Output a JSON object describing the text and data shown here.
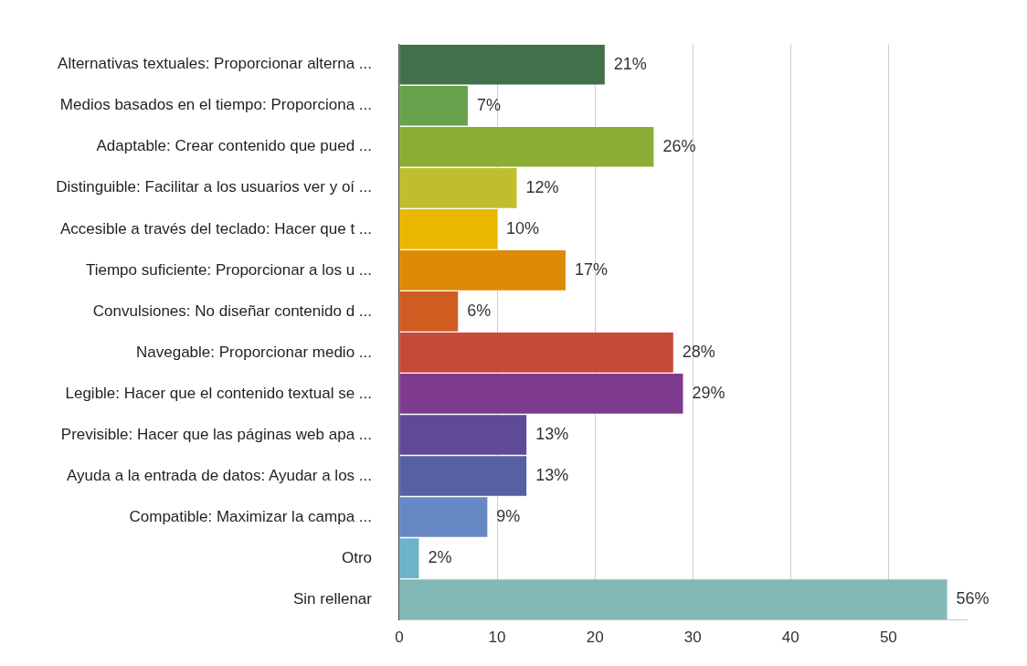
{
  "chart_data": {
    "type": "bar",
    "orientation": "horizontal",
    "categories": [
      "Alternativas textuales: Proporcionar alterna ...",
      "Medios basados en el tiempo: Proporciona ...",
      "Adaptable: Crear contenido que pued ...",
      "Distinguible: Facilitar a los usuarios ver y oí ...",
      "Accesible a través del teclado: Hacer que t ...",
      "Tiempo suficiente: Proporcionar a los u ...",
      "Convulsiones: No diseñar contenido d ...",
      "Navegable: Proporcionar medio ...",
      "Legible: Hacer que el contenido textual se ...",
      "Previsible: Hacer que las páginas web apa ...",
      "Ayuda a la entrada de datos: Ayudar a los ...",
      "Compatible: Maximizar la campa ...",
      "Otro",
      "Sin rellenar"
    ],
    "values": [
      21,
      7,
      26,
      12,
      10,
      17,
      6,
      28,
      29,
      13,
      13,
      9,
      2,
      56
    ],
    "colors": [
      "#41704a",
      "#68a24c",
      "#8bad34",
      "#bfbe2c",
      "#ebb800",
      "#dd8a06",
      "#d05c22",
      "#c44a3a",
      "#7e3a8e",
      "#5e4a97",
      "#5560a5",
      "#6688c4",
      "#6bb4c9",
      "#82b8b6"
    ],
    "value_labels": [
      "21%",
      "7%",
      "26%",
      "12%",
      "10%",
      "17%",
      "6%",
      "28%",
      "29%",
      "13%",
      "13%",
      "9%",
      "2%",
      "56%"
    ],
    "xlim": [
      0,
      58
    ],
    "xticks": [
      0,
      10,
      20,
      30,
      40,
      50
    ],
    "grid": "x"
  }
}
